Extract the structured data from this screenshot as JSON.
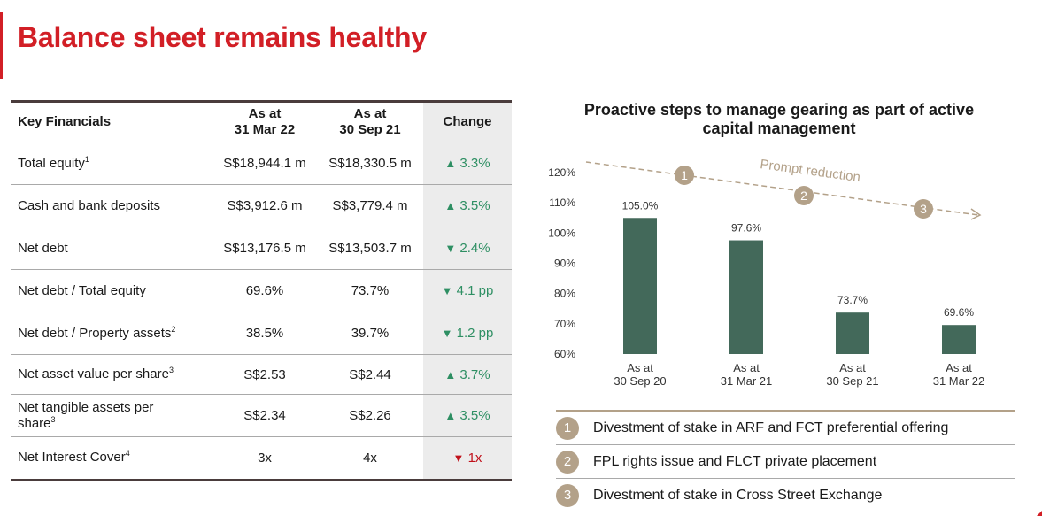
{
  "page": {
    "title": "Balance sheet remains healthy"
  },
  "table": {
    "headers": {
      "metric": "Key Financials",
      "col1_line1": "As at",
      "col1_line2": "31 Mar 22",
      "col2_line1": "As at",
      "col2_line2": "30 Sep 21",
      "change": "Change"
    },
    "rows": [
      {
        "label": "Total equity",
        "sup": "1",
        "v1": "S$18,944.1 m",
        "v2": "S$18,330.5 m",
        "arrow": "▲",
        "change": "3.3%",
        "direction": "up",
        "change_color": "#2e8f63"
      },
      {
        "label": "Cash and bank deposits",
        "sup": "",
        "v1": "S$3,912.6 m",
        "v2": "S$3,779.4 m",
        "arrow": "▲",
        "change": "3.5%",
        "direction": "up",
        "change_color": "#2e8f63"
      },
      {
        "label": "Net debt",
        "sup": "",
        "v1": "S$13,176.5 m",
        "v2": "S$13,503.7 m",
        "arrow": "▼",
        "change": "2.4%",
        "direction": "down",
        "change_color": "#2e8f63"
      },
      {
        "label": "Net debt / Total equity",
        "sup": "",
        "v1": "69.6%",
        "v2": "73.7%",
        "arrow": "▼",
        "change": "4.1 pp",
        "direction": "down",
        "change_color": "#2e8f63"
      },
      {
        "label": "Net debt / Property assets",
        "sup": "2",
        "v1": "38.5%",
        "v2": "39.7%",
        "arrow": "▼",
        "change": "1.2 pp",
        "direction": "down",
        "change_color": "#2e8f63"
      },
      {
        "label": "Net asset value per share",
        "sup": "3",
        "v1": "S$2.53",
        "v2": "S$2.44",
        "arrow": "▲",
        "change": "3.7%",
        "direction": "up",
        "change_color": "#2e8f63"
      },
      {
        "label": "Net tangible assets per",
        "label_line2": "share",
        "sup": "3",
        "v1": "S$2.34",
        "v2": "S$2.26",
        "arrow": "▲",
        "change": "3.5%",
        "direction": "up",
        "change_color": "#2e8f63"
      },
      {
        "label": "Net Interest Cover",
        "sup": "4",
        "v1": "3x",
        "v2": "4x",
        "arrow": "▼",
        "change": "1x",
        "direction": "down",
        "change_color": "#c0111b"
      }
    ]
  },
  "chart_data": {
    "type": "bar",
    "title": "Proactive steps to manage gearing as part of active capital management",
    "categories": [
      [
        "As at",
        "30 Sep 20"
      ],
      [
        "As at",
        "31 Mar 21"
      ],
      [
        "As at",
        "30 Sep 21"
      ],
      [
        "As at",
        "31 Mar 22"
      ]
    ],
    "values": [
      105.0,
      97.6,
      73.7,
      69.6
    ],
    "value_labels": [
      "105.0%",
      "97.6%",
      "73.7%",
      "69.6%"
    ],
    "y_ticks": [
      "120%",
      "110%",
      "100%",
      "90%",
      "80%",
      "70%",
      "60%"
    ],
    "ylim": [
      60,
      120
    ],
    "bar_color": "#43695a",
    "annotation": "Prompt reduction",
    "markers": [
      "1",
      "2",
      "3"
    ],
    "marker_color": "#b3a189"
  },
  "steps": [
    {
      "num": "1",
      "text": "Divestment of stake in ARF and FCT preferential offering"
    },
    {
      "num": "2",
      "text": "FPL rights issue and FLCT private placement"
    },
    {
      "num": "3",
      "text": "Divestment of stake in Cross Street Exchange"
    }
  ]
}
